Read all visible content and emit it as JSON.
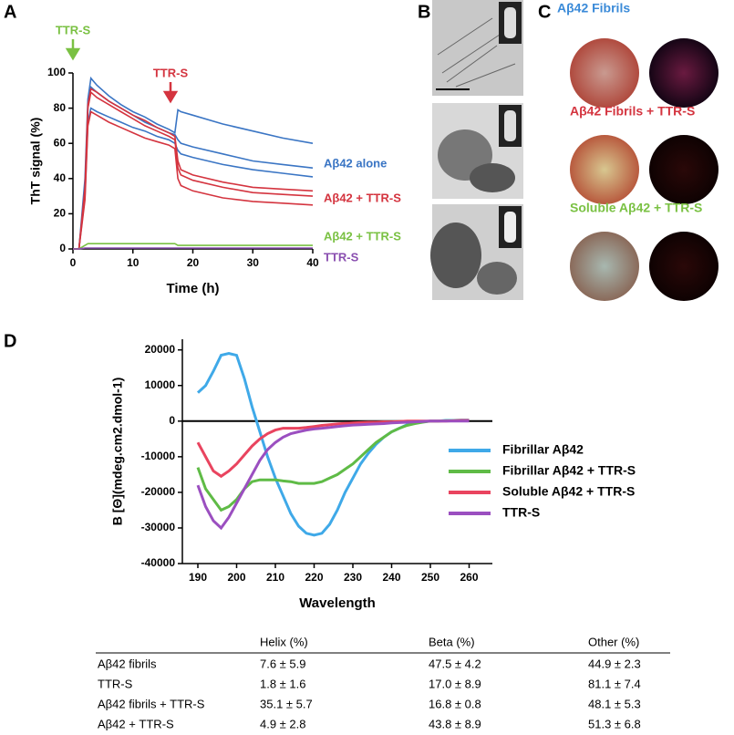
{
  "panel_labels": [
    "A",
    "B",
    "C",
    "D"
  ],
  "chart_data": [
    {
      "type": "line",
      "y_label": "ThT signal (%)",
      "x_label": "Time (h)",
      "xlim": [
        0,
        40
      ],
      "ylim": [
        0,
        100
      ],
      "xticks": [
        0,
        10,
        20,
        30,
        40
      ],
      "yticks": [
        0,
        20,
        40,
        60,
        80,
        100
      ],
      "annotations": [
        {
          "text": "TTR-S",
          "color": "#7ac143"
        },
        {
          "text": "TTR-S",
          "color": "#d4343f"
        }
      ],
      "x": [
        0,
        1,
        2,
        2.5,
        3,
        4,
        6,
        8,
        10,
        12,
        14,
        16,
        17,
        17.5,
        18,
        20,
        25,
        30,
        35,
        40
      ],
      "series": [
        {
          "name": "Aβ42 alone",
          "color": "#3a75c4",
          "replicates": [
            [
              0,
              0,
              40,
              85,
              97,
              93,
              87,
              82,
              78,
              75,
              71,
              68,
              66,
              79,
              78,
              76,
              71,
              67,
              63,
              60
            ],
            [
              0,
              0,
              35,
              80,
              92,
              89,
              84,
              80,
              76,
              72,
              69,
              66,
              65,
              62,
              60,
              58,
              54,
              50,
              48,
              46
            ],
            [
              0,
              0,
              30,
              72,
              80,
              78,
              75,
              72,
              69,
              67,
              64,
              62,
              60,
              56,
              54,
              52,
              48,
              45,
              43,
              41
            ]
          ]
        },
        {
          "name": "Aβ42 + TTR-S",
          "color": "#d4343f",
          "replicates": [
            [
              0,
              0,
              35,
              82,
              91,
              89,
              84,
              80,
              76,
              73,
              69,
              66,
              64,
              50,
              45,
              42,
              38,
              35,
              34,
              33
            ],
            [
              0,
              0,
              33,
              80,
              89,
              86,
              82,
              78,
              74,
              70,
              67,
              64,
              62,
              46,
              42,
              39,
              35,
              32,
              31,
              30
            ],
            [
              0,
              0,
              28,
              70,
              78,
              76,
              72,
              69,
              66,
              63,
              61,
              59,
              57,
              40,
              36,
              33,
              29,
              27,
              26,
              25
            ]
          ]
        },
        {
          "name": "Aβ42 + TTR-S",
          "color": "#7ac143",
          "replicates": [
            [
              0,
              0,
              2,
              3,
              3,
              3,
              3,
              3,
              3,
              3,
              3,
              3,
              3,
              2,
              2,
              2,
              2,
              2,
              2,
              2
            ]
          ]
        },
        {
          "name": "TTR-S",
          "color": "#8a4fb0",
          "replicates": [
            [
              0,
              0,
              0.5,
              0.5,
              0.5,
              0.5,
              0.5,
              0.5,
              0.5,
              0.5,
              0.5,
              0.5,
              0.5,
              0.5,
              0.5,
              0.5,
              0.5,
              0.5,
              0.5,
              0.5
            ]
          ]
        }
      ]
    },
    {
      "type": "line",
      "y_label": "B [Θ](mdeg.cm2.dmol-1)",
      "x_label": "Wavelength",
      "xlim": [
        186,
        266
      ],
      "ylim": [
        -40000,
        23000
      ],
      "xticks": [
        190,
        200,
        210,
        220,
        230,
        240,
        250,
        260
      ],
      "yticks": [
        -40000,
        -30000,
        -20000,
        -10000,
        0,
        10000,
        20000
      ],
      "x": [
        190,
        192,
        194,
        196,
        198,
        200,
        202,
        204,
        206,
        208,
        210,
        212,
        214,
        216,
        218,
        220,
        222,
        224,
        226,
        228,
        230,
        232,
        234,
        236,
        238,
        240,
        242,
        244,
        246,
        248,
        250,
        252,
        254,
        256,
        258,
        260
      ],
      "series": [
        {
          "name": "Fibrillar Aβ42",
          "color": "#3fa9e8",
          "values": [
            8000,
            10000,
            14000,
            18500,
            19000,
            18500,
            12000,
            4000,
            -3000,
            -10000,
            -16000,
            -21000,
            -26000,
            -29500,
            -31500,
            -32000,
            -31500,
            -29000,
            -25000,
            -20000,
            -16000,
            -12000,
            -9000,
            -6500,
            -4500,
            -3000,
            -2000,
            -1000,
            -500,
            -200,
            0,
            0,
            200,
            200,
            300,
            300
          ]
        },
        {
          "name": "Fibrillar Aβ42 + TTR-S",
          "color": "#5fbb46",
          "values": [
            -13000,
            -19000,
            -22000,
            -25000,
            -24000,
            -22000,
            -19000,
            -17000,
            -16500,
            -16500,
            -16500,
            -16800,
            -17000,
            -17500,
            -17500,
            -17500,
            -17000,
            -16000,
            -15000,
            -13500,
            -12000,
            -10000,
            -8000,
            -6000,
            -4500,
            -3000,
            -2000,
            -1200,
            -700,
            -300,
            0,
            0,
            100,
            100,
            200,
            200
          ]
        },
        {
          "name": "Soluble Aβ42 + TTR-S",
          "color": "#e9445f",
          "values": [
            -6000,
            -10000,
            -14000,
            -15500,
            -14000,
            -12000,
            -9500,
            -7000,
            -5000,
            -3500,
            -2500,
            -2000,
            -2000,
            -2000,
            -1800,
            -1500,
            -1200,
            -1000,
            -800,
            -600,
            -500,
            -400,
            -300,
            -300,
            -200,
            -200,
            -100,
            0,
            0,
            0,
            0,
            0,
            0,
            100,
            200,
            200
          ]
        },
        {
          "name": "TTR-S",
          "color": "#9b4fc0",
          "values": [
            -18000,
            -24000,
            -28000,
            -30000,
            -27000,
            -23000,
            -19000,
            -15000,
            -11000,
            -8000,
            -6000,
            -4500,
            -3500,
            -3000,
            -2500,
            -2200,
            -2000,
            -1800,
            -1500,
            -1300,
            -1100,
            -1000,
            -900,
            -800,
            -700,
            -500,
            -400,
            -300,
            -200,
            -100,
            0,
            0,
            0,
            0,
            0,
            0
          ]
        }
      ]
    }
  ],
  "panel_c": {
    "labels": [
      "Aβ42 Fibrils",
      "Aβ42 Fibrils + TTR-S",
      "Soluble Aβ42 + TTR-S"
    ]
  },
  "table": {
    "columns": [
      "Helix (%)",
      "Beta (%)",
      "Other (%)"
    ],
    "rows": [
      [
        "Aβ42 fibrils",
        "7.6 ± 5.9",
        "47.5 ± 4.2",
        "44.9 ± 2.3"
      ],
      [
        "TTR-S",
        "1.8 ± 1.6",
        "17.0 ± 8.9",
        "81.1 ± 7.4"
      ],
      [
        "Aβ42 fibrils + TTR-S",
        "35.1 ± 5.7",
        "16.8 ± 0.8",
        "48.1 ± 5.3"
      ],
      [
        "Aβ42 + TTR-S",
        "4.9 ± 2.8",
        "43.8 ± 8.9",
        "51.3 ± 6.8"
      ]
    ]
  }
}
